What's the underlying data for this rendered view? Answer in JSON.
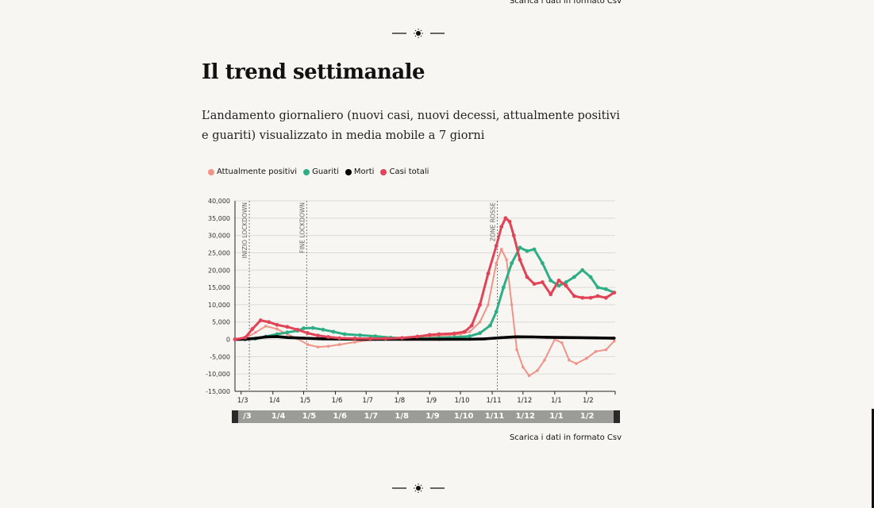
{
  "download_label": "Scarica i dati in formato Csv",
  "title": "Il trend settimanale",
  "description": "L’andamento giornaliero (nuovi casi, nuovi decessi, attualmente positivi e guariti) visualizzato in media mobile a 7 giorni",
  "colors": {
    "attualmente_positivi": "#f0948a",
    "guariti": "#2fae86",
    "morti": "#000000",
    "casi_totali": "#e04456"
  },
  "chart_data": {
    "type": "line",
    "title": "",
    "xlabel": "",
    "ylabel": "",
    "x_ticks": [
      "1/3",
      "1/4",
      "1/5",
      "1/6",
      "1/7",
      "1/8",
      "1/9",
      "1/10",
      "1/11",
      "1/12",
      "1/1",
      "1/2"
    ],
    "ylim": [
      -15000,
      40000
    ],
    "y_ticks": [
      40000,
      35000,
      30000,
      25000,
      20000,
      15000,
      10000,
      5000,
      0,
      -5000,
      -10000,
      -15000
    ],
    "y_tick_labels": [
      "40,000",
      "35,000",
      "30,000",
      "25,000",
      "20,000",
      "15,000",
      "10,000",
      "5,000",
      "0",
      "-5,000",
      "-10,000",
      "-15,000"
    ],
    "grid": true,
    "legend": "top-left",
    "annotations": [
      {
        "label": "INIZIO LOCKDOWN",
        "x": "2020-03-09"
      },
      {
        "label": "FINE LOCKDOWN",
        "x": "2020-05-04"
      },
      {
        "label": "ZONE ROSSE",
        "x": "2020-11-06"
      }
    ],
    "series": [
      {
        "name": "Attualmente positivi",
        "color": "#f0948a",
        "x": [
          "2020-02-24",
          "2020-03-05",
          "2020-03-15",
          "2020-03-25",
          "2020-04-05",
          "2020-04-15",
          "2020-04-25",
          "2020-05-05",
          "2020-05-15",
          "2020-05-25",
          "2020-06-05",
          "2020-06-20",
          "2020-07-05",
          "2020-07-20",
          "2020-08-05",
          "2020-08-20",
          "2020-09-05",
          "2020-09-20",
          "2020-10-01",
          "2020-10-10",
          "2020-10-20",
          "2020-10-28",
          "2020-11-05",
          "2020-11-10",
          "2020-11-15",
          "2020-11-20",
          "2020-11-25",
          "2020-12-01",
          "2020-12-07",
          "2020-12-15",
          "2020-12-22",
          "2021-01-01",
          "2021-01-08",
          "2021-01-15",
          "2021-01-22",
          "2021-02-01",
          "2021-02-10",
          "2021-02-20",
          "2021-02-28"
        ],
        "y": [
          0,
          300,
          2000,
          3800,
          3000,
          1500,
          200,
          -1500,
          -2200,
          -2000,
          -1500,
          -800,
          -200,
          0,
          200,
          500,
          900,
          1200,
          1500,
          2200,
          5000,
          10000,
          22000,
          26000,
          23000,
          10000,
          -3000,
          -8000,
          -10500,
          -9000,
          -6000,
          0,
          -1000,
          -6000,
          -7000,
          -5500,
          -3500,
          -3000,
          -500
        ]
      },
      {
        "name": "Guariti",
        "color": "#2fae86",
        "x": [
          "2020-02-24",
          "2020-03-05",
          "2020-03-15",
          "2020-03-25",
          "2020-04-05",
          "2020-04-15",
          "2020-04-25",
          "2020-05-01",
          "2020-05-10",
          "2020-05-20",
          "2020-05-30",
          "2020-06-10",
          "2020-06-25",
          "2020-07-10",
          "2020-07-25",
          "2020-08-10",
          "2020-08-25",
          "2020-09-10",
          "2020-09-25",
          "2020-10-10",
          "2020-10-20",
          "2020-10-30",
          "2020-11-05",
          "2020-11-12",
          "2020-11-20",
          "2020-11-28",
          "2020-12-05",
          "2020-12-12",
          "2020-12-20",
          "2020-12-28",
          "2021-01-05",
          "2021-01-12",
          "2021-01-20",
          "2021-01-28",
          "2021-02-05",
          "2021-02-12",
          "2021-02-20",
          "2021-02-28"
        ],
        "y": [
          0,
          0,
          200,
          800,
          1500,
          2000,
          2500,
          3200,
          3300,
          2800,
          2200,
          1500,
          1200,
          900,
          500,
          300,
          200,
          400,
          600,
          900,
          1800,
          4000,
          8000,
          15000,
          22000,
          26500,
          25500,
          26000,
          22000,
          17000,
          15500,
          16500,
          18000,
          20000,
          18000,
          15000,
          14500,
          13500
        ]
      },
      {
        "name": "Morti",
        "color": "#000000",
        "x": [
          "2020-02-24",
          "2020-03-05",
          "2020-03-15",
          "2020-03-25",
          "2020-04-05",
          "2020-04-15",
          "2020-05-01",
          "2020-05-20",
          "2020-06-10",
          "2020-07-10",
          "2020-08-10",
          "2020-09-10",
          "2020-10-10",
          "2020-10-25",
          "2020-11-10",
          "2020-11-25",
          "2020-12-10",
          "2020-12-25",
          "2021-01-10",
          "2021-01-25",
          "2021-02-10",
          "2021-02-28"
        ],
        "y": [
          0,
          50,
          300,
          700,
          800,
          550,
          350,
          150,
          80,
          20,
          10,
          15,
          40,
          150,
          500,
          750,
          700,
          600,
          550,
          500,
          420,
          350
        ]
      },
      {
        "name": "Casi totali",
        "color": "#e04456",
        "x": [
          "2020-02-24",
          "2020-03-05",
          "2020-03-12",
          "2020-03-20",
          "2020-03-28",
          "2020-04-05",
          "2020-04-15",
          "2020-04-25",
          "2020-05-05",
          "2020-05-15",
          "2020-05-25",
          "2020-06-05",
          "2020-06-20",
          "2020-07-05",
          "2020-07-20",
          "2020-08-05",
          "2020-08-20",
          "2020-09-01",
          "2020-09-10",
          "2020-09-25",
          "2020-10-05",
          "2020-10-12",
          "2020-10-20",
          "2020-10-28",
          "2020-11-05",
          "2020-11-10",
          "2020-11-14",
          "2020-11-18",
          "2020-11-22",
          "2020-11-28",
          "2020-12-05",
          "2020-12-12",
          "2020-12-20",
          "2020-12-28",
          "2021-01-05",
          "2021-01-12",
          "2021-01-20",
          "2021-01-28",
          "2021-02-05",
          "2021-02-12",
          "2021-02-20",
          "2021-02-28"
        ],
        "y": [
          0,
          500,
          3000,
          5500,
          5000,
          4200,
          3600,
          2800,
          1800,
          1100,
          700,
          350,
          250,
          200,
          250,
          400,
          800,
          1300,
          1500,
          1700,
          2200,
          4000,
          10000,
          19000,
          27000,
          32500,
          35000,
          34000,
          30000,
          23000,
          18000,
          16000,
          16500,
          13000,
          17000,
          15500,
          12500,
          12000,
          12000,
          12500,
          12000,
          13500
        ]
      }
    ]
  },
  "brush": {
    "labels": [
      "/3",
      "1/4",
      "1/5",
      "1/6",
      "1/7",
      "1/8",
      "1/9",
      "1/10",
      "1/11",
      "1/12",
      "1/1",
      "1/2"
    ]
  }
}
